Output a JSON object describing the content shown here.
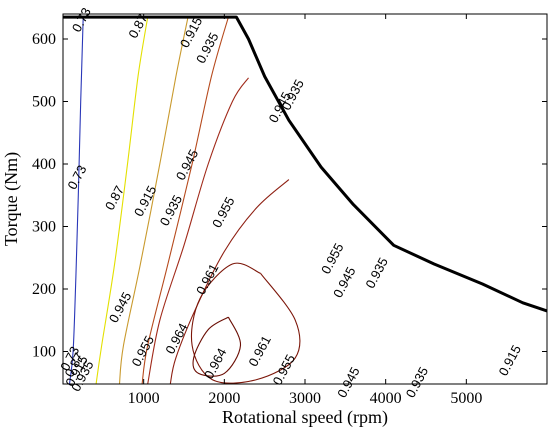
{
  "chart_data": {
    "type": "contour",
    "xlabel": "Rotational speed (rpm)",
    "ylabel": "Torque (Nm)",
    "xlim": [
      0,
      6000
    ],
    "ylim": [
      48,
      640
    ],
    "xticks": [
      1000,
      2000,
      3000,
      4000,
      5000
    ],
    "yticks": [
      100,
      200,
      300,
      400,
      500,
      600
    ],
    "grid": false,
    "legend": "none",
    "envelope": {
      "name": "max torque envelope",
      "color": "#000000",
      "points": [
        [
          0,
          635
        ],
        [
          2150,
          635
        ],
        [
          2300,
          600
        ],
        [
          2500,
          540
        ],
        [
          2800,
          470
        ],
        [
          3200,
          395
        ],
        [
          3600,
          335
        ],
        [
          4100,
          270
        ],
        [
          4600,
          240
        ],
        [
          5200,
          208
        ],
        [
          5700,
          178
        ],
        [
          6000,
          165
        ]
      ]
    },
    "contours": [
      {
        "level": "0.73",
        "color": "#2a37b8",
        "points": [
          [
            250,
            635
          ],
          [
            220,
            500
          ],
          [
            190,
            350
          ],
          [
            160,
            220
          ],
          [
            125,
            100
          ],
          [
            80,
            48
          ]
        ],
        "labels": [
          [
            240,
            630,
            "0.73"
          ],
          [
            185,
            378,
            "0.73"
          ],
          [
            95,
            88,
            "0.73"
          ]
        ]
      },
      {
        "level": "0.87",
        "color": "#e3e000",
        "points": [
          [
            1050,
            635
          ],
          [
            930,
            540
          ],
          [
            800,
            400
          ],
          [
            640,
            240
          ],
          [
            480,
            110
          ],
          [
            410,
            48
          ]
        ],
        "labels": [
          [
            940,
            620,
            "0.87"
          ],
          [
            650,
            345,
            "0.87"
          ],
          [
            150,
            78,
            "0.87"
          ]
        ]
      },
      {
        "level": "0.915",
        "color": "#c99a2e",
        "points": [
          [
            1550,
            635
          ],
          [
            1400,
            540
          ],
          [
            1200,
            400
          ],
          [
            960,
            240
          ],
          [
            750,
            110
          ],
          [
            700,
            48
          ]
        ],
        "labels": [
          [
            1600,
            610,
            "0.915"
          ],
          [
            1030,
            340,
            "0.915"
          ],
          [
            180,
            68,
            "0.915"
          ],
          [
            5550,
            85,
            "0.915"
          ]
        ]
      },
      {
        "level": "0.935",
        "color": "#b64a1d",
        "points": [
          [
            2050,
            635
          ],
          [
            1840,
            540
          ],
          [
            1600,
            400
          ],
          [
            1300,
            240
          ],
          [
            1050,
            110
          ],
          [
            980,
            48
          ]
        ],
        "labels": [
          [
            1800,
            585,
            "0.935"
          ],
          [
            1350,
            325,
            "0.935"
          ],
          [
            250,
            60,
            "0.935"
          ],
          [
            2860,
            510,
            "0.935"
          ],
          [
            3900,
            225,
            "0.935"
          ],
          [
            4400,
            50,
            "0.935"
          ]
        ]
      },
      {
        "level": "0.945",
        "color": "#a12a1a",
        "points": [
          [
            2300,
            538
          ],
          [
            2100,
            500
          ],
          [
            1800,
            400
          ],
          [
            1500,
            270
          ],
          [
            1200,
            150
          ],
          [
            1050,
            48
          ]
        ],
        "labels": [
          [
            2700,
            490,
            "0.945"
          ],
          [
            1550,
            398,
            "0.945"
          ],
          [
            720,
            170,
            "0.945"
          ],
          [
            3500,
            210,
            "0.945"
          ],
          [
            3550,
            50,
            "0.945"
          ]
        ]
      },
      {
        "level": "0.955",
        "color": "#8e1f12",
        "points": [
          [
            2800,
            375
          ],
          [
            2400,
            330
          ],
          [
            2000,
            260
          ],
          [
            1650,
            170
          ],
          [
            1400,
            90
          ],
          [
            1330,
            48
          ]
        ],
        "labels": [
          [
            2000,
            322,
            "0.955"
          ],
          [
            3350,
            248,
            "0.955"
          ],
          [
            1000,
            100,
            "0.955"
          ],
          [
            2750,
            70,
            "0.955"
          ]
        ]
      },
      {
        "level": "0.961",
        "color": "#7c1609",
        "points": [
          [
            2450,
            225
          ],
          [
            2100,
            240
          ],
          [
            1700,
            185
          ],
          [
            1600,
            110
          ],
          [
            1850,
            55
          ],
          [
            2400,
            55
          ],
          [
            2880,
            90
          ],
          [
            2880,
            150
          ],
          [
            2450,
            225
          ]
        ],
        "labels": [
          [
            1800,
            215,
            "0.961"
          ],
          [
            2450,
            100,
            "0.961"
          ]
        ]
      },
      {
        "level": "0.964",
        "color": "#6a0e04",
        "points": [
          [
            2050,
            155
          ],
          [
            1800,
            135
          ],
          [
            1620,
            90
          ],
          [
            1680,
            65
          ],
          [
            2000,
            65
          ],
          [
            2200,
            110
          ],
          [
            2050,
            155
          ]
        ],
        "labels": [
          [
            1420,
            120,
            "0.964"
          ],
          [
            1900,
            80,
            "0.964"
          ]
        ]
      }
    ]
  }
}
